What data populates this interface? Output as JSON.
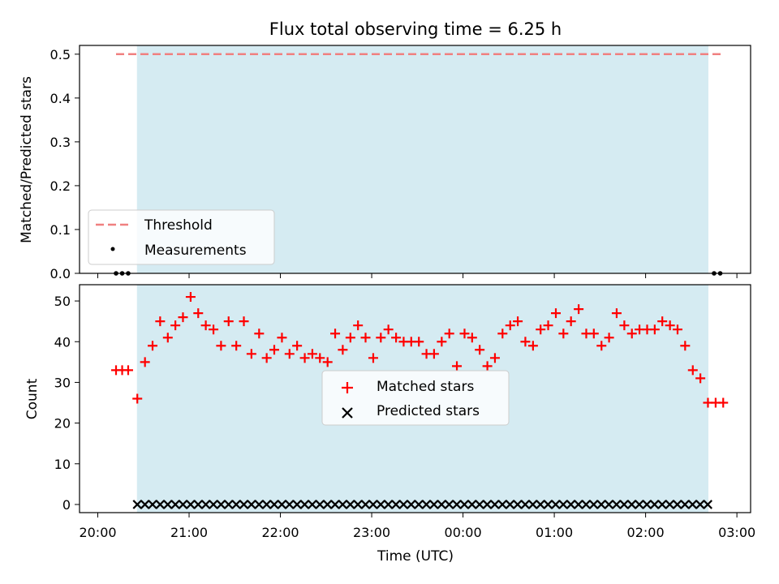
{
  "chart_data": [
    {
      "type": "scatter",
      "title": "Flux total observing time = 6.25 h",
      "xlabel": "",
      "ylabel": "Matched/Predicted stars",
      "ylim": [
        0,
        0.52
      ],
      "yticks": [
        "0.0",
        "0.1",
        "0.2",
        "0.3",
        "0.4",
        "0.5"
      ],
      "grid": false,
      "legend_position": "lower-left",
      "shaded_span": {
        "start": 20.4333,
        "end": 26.6833,
        "color": "#add8e6"
      },
      "threshold": {
        "name": "Threshold",
        "value": 0.5,
        "x_start": 20.2,
        "x_end": 26.85,
        "color": "#f08080"
      },
      "series": [
        {
          "name": "Measurements",
          "marker": "dot",
          "color": "#000000",
          "x": [
            20.2,
            20.267,
            20.333,
            26.75,
            26.817
          ],
          "y": [
            0,
            0,
            0,
            0,
            0
          ]
        }
      ]
    },
    {
      "type": "scatter",
      "xlabel": "Time (UTC)",
      "ylabel": "Count",
      "ylim": [
        -2,
        54
      ],
      "yticks": [
        "0",
        "10",
        "20",
        "30",
        "40",
        "50"
      ],
      "xticks": [
        "20:00",
        "21:00",
        "22:00",
        "23:00",
        "00:00",
        "01:00",
        "02:00",
        "03:00"
      ],
      "grid": false,
      "legend_position": "center",
      "shaded_span": {
        "start": 20.4333,
        "end": 26.6833,
        "color": "#add8e6"
      },
      "series": [
        {
          "name": "Matched stars",
          "marker": "plus",
          "color": "#ff0000",
          "x": [
            20.2,
            20.267,
            20.333,
            20.433,
            20.517,
            20.6,
            20.683,
            20.767,
            20.85,
            20.933,
            21.017,
            21.1,
            21.183,
            21.267,
            21.35,
            21.433,
            21.517,
            21.6,
            21.683,
            21.767,
            21.85,
            21.933,
            22.017,
            22.1,
            22.183,
            22.267,
            22.35,
            22.433,
            22.517,
            22.6,
            22.683,
            22.767,
            22.85,
            22.933,
            23.017,
            23.1,
            23.183,
            23.267,
            23.35,
            23.433,
            23.517,
            23.6,
            23.683,
            23.767,
            23.85,
            23.933,
            24.017,
            24.1,
            24.183,
            24.267,
            24.35,
            24.433,
            24.517,
            24.6,
            24.683,
            24.767,
            24.85,
            24.933,
            25.017,
            25.1,
            25.183,
            25.267,
            25.35,
            25.433,
            25.517,
            25.6,
            25.683,
            25.767,
            25.85,
            25.933,
            26.017,
            26.1,
            26.183,
            26.267,
            26.35,
            26.433,
            26.517,
            26.6,
            26.683,
            26.767,
            26.85
          ],
          "y": [
            33,
            33,
            33,
            26,
            35,
            39,
            45,
            41,
            44,
            46,
            51,
            47,
            44,
            43,
            39,
            45,
            39,
            45,
            37,
            42,
            36,
            38,
            41,
            37,
            39,
            36,
            37,
            36,
            35,
            42,
            38,
            41,
            44,
            41,
            36,
            41,
            43,
            41,
            40,
            40,
            40,
            37,
            37,
            40,
            42,
            34,
            42,
            41,
            38,
            34,
            36,
            42,
            44,
            45,
            40,
            39,
            43,
            44,
            47,
            42,
            45,
            48,
            42,
            42,
            39,
            41,
            47,
            44,
            42,
            43,
            43,
            43,
            45,
            44,
            43,
            39,
            33,
            31,
            25,
            25,
            25
          ]
        },
        {
          "name": "Predicted stars",
          "marker": "x",
          "color": "#000000",
          "x_start": 20.4333,
          "x_end": 26.6833,
          "x_step": 0.0833,
          "y_value": 0
        }
      ]
    }
  ]
}
